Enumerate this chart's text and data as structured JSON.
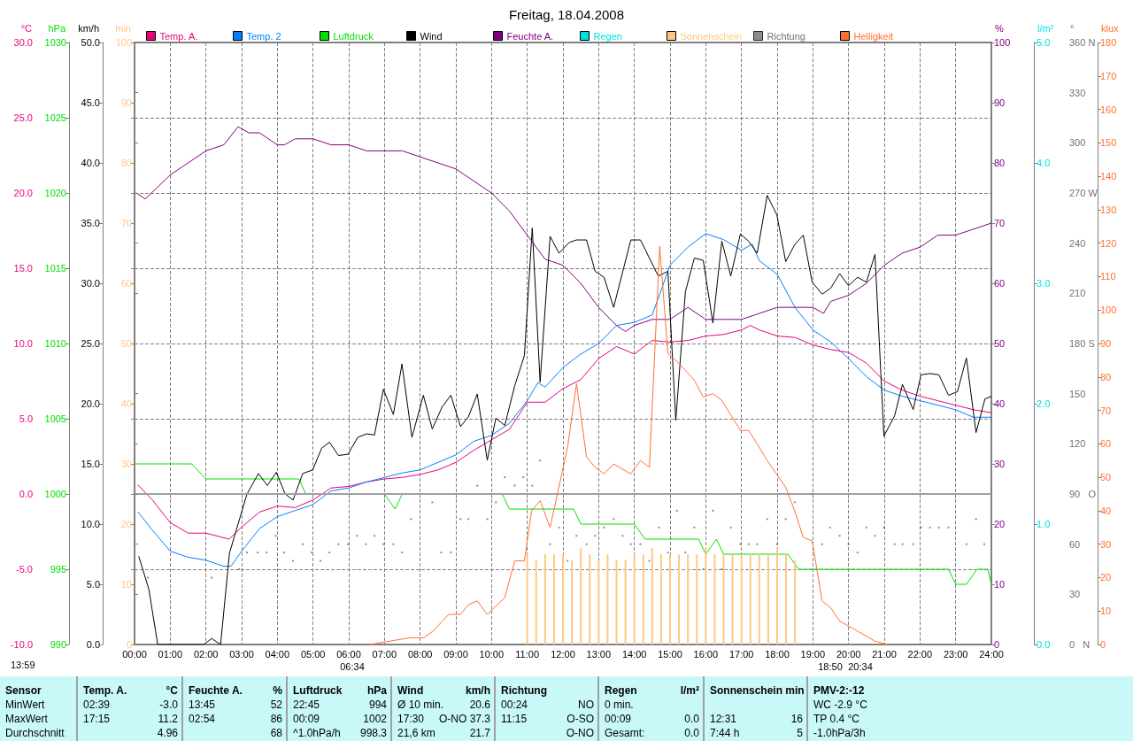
{
  "chart_data": [
    {
      "type": "line",
      "title": "Freitag, 18.04.2008",
      "marker": "none",
      "line_style": "solid",
      "grid": true,
      "legend": "top",
      "xlim": [
        0,
        24
      ],
      "xticks": [
        {
          "value": 0,
          "label": "00:00"
        },
        {
          "value": 1,
          "label": "01:00"
        },
        {
          "value": 2,
          "label": "02:00"
        },
        {
          "value": 3,
          "label": "03:00"
        },
        {
          "value": 4,
          "label": "04:00"
        },
        {
          "value": 5,
          "label": "05:00"
        },
        {
          "value": 6,
          "label": "06:00"
        },
        {
          "value": 7,
          "label": "07:00"
        },
        {
          "value": 8,
          "label": "08:00"
        },
        {
          "value": 9,
          "label": "09:00"
        },
        {
          "value": 10,
          "label": "10:00"
        },
        {
          "value": 11,
          "label": "11:00"
        },
        {
          "value": 12,
          "label": "12:00"
        },
        {
          "value": 13,
          "label": "13:00"
        },
        {
          "value": 14,
          "label": "14:00"
        },
        {
          "value": 15,
          "label": "15:00"
        },
        {
          "value": 16,
          "label": "16:00"
        },
        {
          "value": 17,
          "label": "17:00"
        },
        {
          "value": 18,
          "label": "18:00"
        },
        {
          "value": 19,
          "label": "19:00"
        },
        {
          "value": 20,
          "label": "20:00"
        },
        {
          "value": 21,
          "label": "21:00"
        },
        {
          "value": 22,
          "label": "22:00"
        },
        {
          "value": 23,
          "label": "23:00"
        },
        {
          "value": 24,
          "label": "24:00"
        }
      ],
      "ylabel": "°C",
      "ylim": [
        -10,
        30
      ],
      "yticks": [
        {
          "value": -10,
          "label": "-10.0"
        },
        {
          "value": -5,
          "label": "-5.0"
        },
        {
          "value": 0,
          "label": "0.0"
        },
        {
          "value": 5,
          "label": "5.0"
        },
        {
          "value": 10,
          "label": "10.0"
        },
        {
          "value": 15,
          "label": "15.0"
        },
        {
          "value": 20,
          "label": "20.0"
        },
        {
          "value": 25,
          "label": "25.0"
        },
        {
          "value": 30,
          "label": "30.0"
        }
      ],
      "y2label": "hPa",
      "y2lim": [
        990,
        1030
      ],
      "y2ticks": [
        990,
        995,
        1000,
        1005,
        1010,
        1015,
        1020,
        1025,
        1030
      ],
      "y3label": "km/h",
      "y3lim": [
        0,
        50
      ],
      "y3ticks": [
        {
          "value": 0,
          "label": "0.0"
        },
        {
          "value": 5,
          "label": "5.0"
        },
        {
          "value": 10,
          "label": "10.0"
        },
        {
          "value": 15,
          "label": "15.0"
        },
        {
          "value": 20,
          "label": "20.0"
        },
        {
          "value": 25,
          "label": "25.0"
        },
        {
          "value": 30,
          "label": "30.0"
        },
        {
          "value": 35,
          "label": "35.0"
        },
        {
          "value": 40,
          "label": "40.0"
        },
        {
          "value": 45,
          "label": "45.0"
        },
        {
          "value": 50,
          "label": "50.0"
        }
      ],
      "ref_lines": [
        {
          "axis": "y",
          "value": 0,
          "color": "#a0a0a0"
        }
      ],
      "annotations": [
        "13:59",
        "06:34",
        "18:50",
        "20:34"
      ],
      "series": [
        {
          "name": "Temp. A.",
          "color": "#e8007c",
          "x": [
            0.1,
            0.5,
            1,
            1.5,
            2,
            2.65,
            3,
            3.5,
            4,
            4.5,
            5,
            5.5,
            6,
            6.5,
            7,
            7.5,
            8,
            8.5,
            9,
            9.5,
            10,
            10.5,
            11,
            11.5,
            12,
            12.5,
            13,
            13.5,
            14,
            14.5,
            15,
            15.5,
            16,
            16.5,
            17,
            17.25,
            17.5,
            18,
            18.5,
            19,
            19.5,
            20,
            20.5,
            21,
            21.5,
            22,
            22.5,
            23,
            23.5,
            24
          ],
          "values": [
            0.6,
            -0.4,
            -1.9,
            -2.6,
            -2.6,
            -3.0,
            -2.2,
            -1.2,
            -0.8,
            -0.9,
            -0.4,
            0.4,
            0.5,
            0.8,
            1.0,
            1.1,
            1.3,
            1.6,
            2.1,
            2.9,
            3.6,
            4.3,
            6.1,
            6.1,
            7.0,
            7.6,
            9.0,
            9.8,
            9.3,
            10.2,
            10.1,
            10.2,
            10.5,
            10.6,
            10.9,
            11.2,
            10.9,
            10.5,
            10.4,
            9.9,
            9.6,
            9.4,
            8.7,
            7.5,
            6.9,
            6.5,
            6.2,
            5.9,
            5.6,
            5.4
          ]
        },
        {
          "name": "Temp. 2",
          "color": "#0080ff",
          "x": [
            0.1,
            0.5,
            1,
            1.5,
            2,
            2.5,
            2.7,
            3,
            3.5,
            4,
            4.5,
            5,
            5.5,
            6,
            6.5,
            7,
            7.5,
            8,
            8.5,
            9,
            9.5,
            10,
            10.5,
            11,
            11.3,
            11.5,
            12,
            12.5,
            13,
            13.5,
            14,
            14.5,
            15,
            15.5,
            16,
            16.5,
            17,
            17.3,
            17.5,
            18,
            18.5,
            19,
            19.5,
            20,
            20.5,
            21,
            21.5,
            22,
            22.5,
            23,
            23.5,
            24
          ],
          "values": [
            -1.2,
            -2.4,
            -3.8,
            -4.2,
            -4.4,
            -4.8,
            -4.8,
            -3.8,
            -2.3,
            -1.5,
            -1.1,
            -0.7,
            0.2,
            0.4,
            0.8,
            1.1,
            1.4,
            1.6,
            2.1,
            2.6,
            3.5,
            3.9,
            4.7,
            6.2,
            7.4,
            7.1,
            8.4,
            9.3,
            10.0,
            11.2,
            11.4,
            11.9,
            15.2,
            16.4,
            17.3,
            16.9,
            16.2,
            16.6,
            15.5,
            14.6,
            12.4,
            10.9,
            10.1,
            9.0,
            7.8,
            6.9,
            6.5,
            6.2,
            5.9,
            5.6,
            5.1,
            5.1
          ]
        },
        {
          "name": "Luftdruck",
          "color": "#00e000",
          "axis": "y2",
          "x": [
            0,
            1.6,
            2.0,
            4.6,
            4.8,
            7.0,
            7.3,
            7.5,
            10.3,
            10.5,
            12.3,
            12.5,
            14.0,
            14.3,
            15.8,
            16.0,
            16.3,
            16.5,
            18.3,
            18.6,
            22.8,
            23.0,
            23.3,
            23.6,
            23.9,
            24
          ],
          "values": [
            1002,
            1002,
            1001,
            1001,
            1000,
            1000,
            999,
            1000,
            1000,
            999,
            999,
            998,
            998,
            997,
            997,
            996,
            997,
            996,
            996,
            995,
            995,
            994,
            994,
            995,
            995,
            994
          ]
        },
        {
          "name": "Wind",
          "color": "#000000",
          "axis": "y3",
          "x": [
            0.12,
            0.4,
            0.65,
            1.94,
            2.16,
            2.41,
            2.66,
            3.15,
            3.47,
            3.72,
            3.97,
            4.22,
            4.44,
            4.71,
            4.99,
            5.24,
            5.46,
            5.71,
            5.98,
            6.25,
            6.5,
            6.72,
            6.97,
            7.25,
            7.49,
            7.77,
            8.09,
            8.34,
            8.61,
            8.86,
            9.13,
            9.35,
            9.6,
            9.88,
            10.12,
            10.37,
            10.65,
            10.92,
            11.14,
            11.36,
            11.64,
            11.89,
            12.18,
            12.38,
            12.66,
            12.9,
            13.15,
            13.42,
            13.9,
            14.17,
            14.67,
            14.94,
            15.16,
            15.43,
            15.68,
            15.93,
            16.2,
            16.45,
            16.7,
            16.97,
            17.2,
            17.44,
            17.72,
            17.99,
            18.24,
            18.49,
            18.73,
            18.98,
            19.26,
            19.5,
            19.75,
            20.0,
            20.25,
            20.5,
            20.74,
            20.99,
            21.29,
            21.51,
            21.81,
            22.03,
            22.28,
            22.53,
            22.8,
            23.05,
            23.3,
            23.57,
            23.82,
            24.0
          ],
          "values": [
            7.3,
            4.6,
            0,
            0,
            0.5,
            0,
            7.6,
            12.5,
            14.2,
            13.2,
            14.3,
            12.5,
            12.0,
            14.2,
            14.5,
            16.3,
            16.8,
            15.7,
            15.8,
            17.2,
            17.5,
            17.4,
            21.2,
            19.1,
            23.3,
            17.2,
            20.7,
            17.9,
            19.7,
            20.7,
            18.1,
            18.9,
            20.8,
            15.3,
            18.8,
            18.2,
            21.5,
            24.0,
            34.6,
            21.8,
            33.9,
            32.5,
            33.4,
            33.6,
            33.6,
            31.0,
            30.5,
            28.0,
            33.6,
            33.6,
            30.6,
            31.0,
            18.6,
            29.3,
            32.1,
            31.9,
            26.7,
            33.5,
            30.6,
            34.1,
            33.5,
            32.5,
            37.3,
            35.7,
            31.8,
            33.2,
            34.0,
            30.1,
            29.1,
            29.6,
            30.8,
            29.8,
            30.5,
            30.1,
            32.4,
            17.3,
            19.0,
            21.6,
            19.5,
            22.4,
            22.5,
            22.4,
            20.7,
            21.0,
            23.8,
            17.6,
            20.4,
            20.6
          ]
        }
      ]
    },
    {
      "type": "line",
      "marker": "none",
      "line_style": "solid",
      "legend": "top",
      "tick_labels": "y",
      "xlim": [
        0,
        24
      ],
      "ylabel": "min",
      "ylim": [
        0,
        100
      ],
      "yticks": [
        0,
        10,
        20,
        30,
        40,
        50,
        60,
        70,
        80,
        90,
        100
      ],
      "y2label": "%",
      "y2lim": [
        0,
        100
      ],
      "y2ticks": [
        0,
        10,
        20,
        30,
        40,
        50,
        60,
        70,
        80,
        90,
        100
      ],
      "y3label": "l/m²",
      "y3lim": [
        0,
        5
      ],
      "y3ticks": [
        {
          "value": 0,
          "label": "0.0"
        },
        {
          "value": 1,
          "label": "1.0"
        },
        {
          "value": 2,
          "label": "2.0"
        },
        {
          "value": 3,
          "label": "3.0"
        },
        {
          "value": 4,
          "label": "4.0"
        },
        {
          "value": 5,
          "label": "5.0"
        }
      ],
      "series": [
        {
          "name": "Feuchte A.",
          "color": "#800080",
          "axis": "y2",
          "x": [
            0.05,
            0.3,
            1,
            1.5,
            2,
            2.5,
            2.9,
            3.2,
            3.5,
            4,
            4.2,
            4.5,
            5,
            5.5,
            6,
            6.5,
            7,
            7.5,
            8,
            8.5,
            9,
            9.5,
            10,
            10.5,
            11,
            11.5,
            12,
            12.5,
            13,
            13.5,
            13.75,
            14,
            14.5,
            15,
            15.5,
            16,
            16.5,
            17,
            17.5,
            18,
            18.5,
            19,
            19.3,
            19.5,
            20,
            20.5,
            21,
            21.5,
            22,
            22.5,
            23,
            24
          ],
          "values": [
            75,
            74,
            78,
            80,
            82,
            83,
            86,
            85,
            85,
            83,
            83,
            84,
            84,
            83,
            83,
            82,
            82,
            82,
            81,
            80,
            79,
            77,
            75,
            72,
            68,
            64,
            63,
            60,
            56,
            53,
            52,
            53,
            54,
            54,
            56,
            54,
            54,
            54,
            55,
            56,
            56,
            56,
            55,
            57,
            58,
            60,
            63,
            65,
            66,
            68,
            68,
            70
          ]
        },
        {
          "name": "Regen",
          "color": "#00e0e0",
          "axis": "y3"
        },
        {
          "name": "Sonnenschein",
          "type": "bar",
          "color": "#ffc880",
          "x": [
            11,
            11.25,
            11.5,
            11.75,
            12,
            12.25,
            12.5,
            12.75,
            13,
            13.25,
            13.5,
            13.75,
            14,
            14.25,
            14.5,
            14.75,
            15,
            15.25,
            15.5,
            15.75,
            16,
            16.25,
            16.5,
            16.75,
            17,
            17.25,
            17.5,
            17.75,
            18,
            18.25,
            18.5
          ],
          "values": [
            15,
            14,
            15,
            15,
            15,
            14,
            16,
            15,
            14,
            15,
            14,
            14,
            15,
            15,
            16,
            15,
            15,
            15,
            15,
            15,
            16,
            15,
            15,
            15,
            15,
            15,
            15,
            15,
            16,
            15,
            14
          ]
        }
      ]
    },
    {
      "type": "line",
      "marker": "none",
      "line_style": "solid",
      "legend": "top",
      "tick_labels": "y",
      "xlim": [
        0,
        24
      ],
      "ylabel": "°",
      "ylim": [
        0,
        360
      ],
      "yticks": [
        {
          "value": 0,
          "label": "0   N"
        },
        30,
        60,
        {
          "value": 90,
          "label": "90   O"
        },
        120,
        150,
        {
          "value": 180,
          "label": "180 S"
        },
        210,
        240,
        {
          "value": 270,
          "label": "270 W"
        },
        300,
        330,
        {
          "value": 360,
          "label": "360 N"
        }
      ],
      "y2label": "klux",
      "y2lim": [
        0,
        180
      ],
      "y2ticks": [
        0,
        10,
        20,
        30,
        40,
        50,
        60,
        70,
        80,
        90,
        100,
        110,
        120,
        130,
        140,
        150,
        160,
        170,
        180
      ],
      "series": [
        {
          "name": "Richtung",
          "type": "scatter",
          "marker": "square",
          "color": "#707070",
          "x": [
            0.37,
            2.16,
            2.93,
            3.15,
            3.45,
            3.7,
            3.95,
            4.19,
            4.44,
            4.71,
            4.96,
            5.21,
            5.46,
            5.71,
            5.98,
            6.23,
            6.48,
            6.72,
            6.97,
            7.25,
            7.49,
            7.74,
            8.34,
            8.59,
            8.86,
            9.13,
            9.35,
            9.6,
            9.88,
            10.12,
            10.37,
            10.65,
            10.89,
            11.14,
            11.36,
            11.64,
            11.89,
            12.13,
            12.38,
            12.66,
            12.9,
            13.15,
            13.42,
            13.67,
            13.9,
            14.17,
            14.42,
            14.69,
            14.94,
            15.19,
            15.43,
            15.68,
            15.93,
            16.2,
            16.45,
            16.7,
            16.97,
            17.2,
            17.44,
            17.72,
            17.99,
            18.24,
            18.49,
            18.98,
            19.26,
            19.48,
            19.75,
            20.0,
            20.25,
            20.5,
            20.74,
            20.99,
            21.29,
            21.51,
            21.81,
            22.03,
            22.28,
            22.53,
            22.8,
            23.3,
            23.57,
            23.8,
            24.0
          ],
          "values": [
            40,
            40,
            45,
            55,
            55,
            55,
            65,
            55,
            50,
            60,
            55,
            50,
            55,
            60,
            60,
            65,
            60,
            65,
            60,
            60,
            55,
            75,
            85,
            55,
            55,
            75,
            75,
            95,
            75,
            85,
            100,
            95,
            100,
            95,
            110,
            60,
            70,
            50,
            65,
            60,
            65,
            70,
            75,
            65,
            60,
            60,
            50,
            70,
            55,
            80,
            55,
            70,
            45,
            80,
            45,
            70,
            60,
            60,
            60,
            75,
            60,
            75,
            85,
            90,
            60,
            70,
            65,
            60,
            55,
            70,
            65,
            70,
            60,
            60,
            60,
            70,
            70,
            70,
            70,
            60,
            75,
            60,
            65
          ]
        },
        {
          "name": "Helligkeit",
          "color": "#ff7030",
          "axis": "y2",
          "x": [
            6.6,
            7.7,
            8.1,
            8.36,
            8.8,
            9.13,
            9.36,
            9.6,
            9.88,
            10.37,
            10.65,
            10.92,
            11.12,
            11.36,
            11.64,
            12.13,
            12.38,
            12.66,
            12.9,
            13.15,
            13.42,
            13.9,
            14.17,
            14.42,
            14.71,
            14.94,
            15.16,
            15.43,
            15.68,
            15.93,
            16.2,
            16.45,
            16.97,
            17.2,
            17.44,
            17.72,
            18.24,
            18.49,
            18.73,
            18.98,
            19.26,
            19.5,
            19.75,
            20.25,
            20.74,
            21.1
          ],
          "values": [
            0,
            2,
            2,
            4,
            9,
            9,
            12,
            13,
            9,
            14,
            25,
            25,
            40,
            43,
            35,
            59,
            78,
            56,
            53,
            51,
            54,
            51,
            55,
            53,
            119,
            87,
            85,
            82,
            79,
            74,
            75,
            73,
            64,
            64,
            60,
            55,
            47,
            40,
            32,
            31,
            13,
            11,
            7,
            4,
            1,
            0
          ]
        }
      ]
    },
    {
      "type": "other",
      "annotations": [
        "Sensor",
        "MinWert",
        "MaxWert",
        "Durchschnitt",
        "Temp. A.\t°C",
        "02:39\t-3.0",
        "17:15\t11.2",
        "\t4.96",
        "Feuchte A.\t%",
        "13:45\t52",
        "02:54\t86",
        "\t68",
        "Luftdruck\thPa",
        "22:45\t994",
        "00:09\t1002",
        "^1.0hPa/h\t998.3",
        "Wind\tkm/h",
        "Ø 10 min.\t20.6",
        "17:30\tO-NO 37.3",
        "21,6 km\t21.7",
        "Richtung",
        "00:24\tNO",
        "11:15\tO-SO",
        "\tO-NO",
        "Regen\tl/m²",
        "0 min.",
        "00:09\t0.0",
        "Gesamt:\t0.0",
        "Sonnenschein min",
        null,
        "12:31\t16",
        "7:44 h\t5",
        "PMV-2:-12",
        "WC -2.9 °C",
        "TP 0.4 °C",
        "-1.0hPa/3h"
      ]
    }
  ]
}
